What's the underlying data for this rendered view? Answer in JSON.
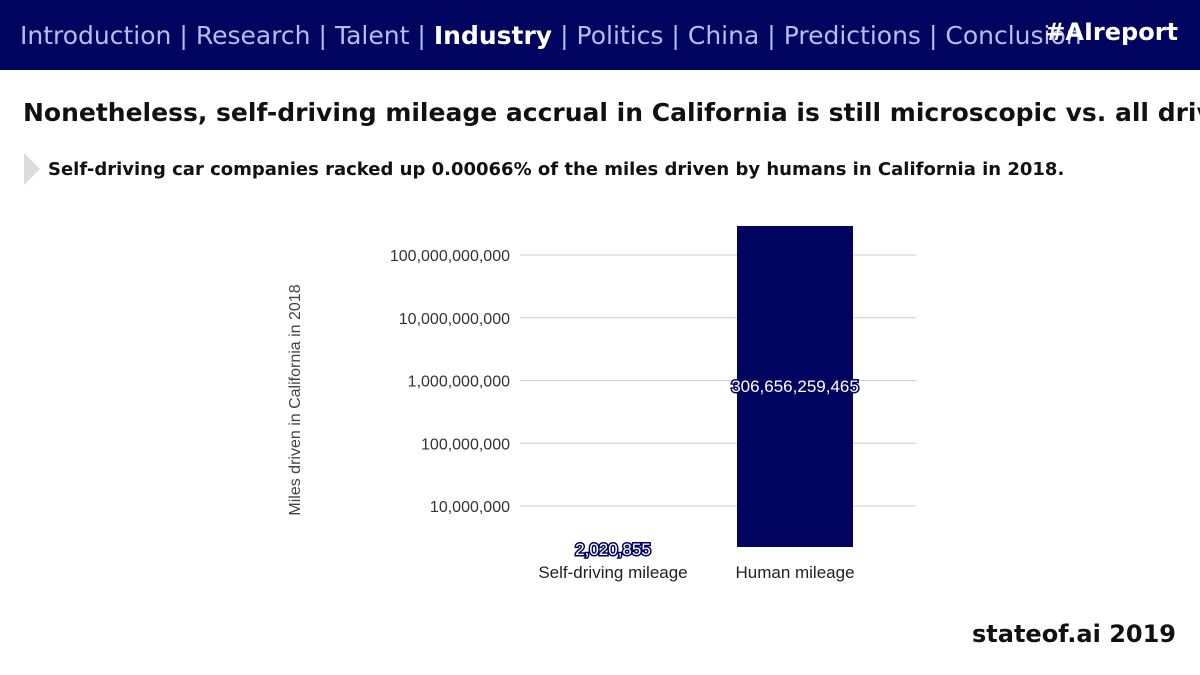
{
  "nav": {
    "items": [
      "Introduction",
      "Research",
      "Talent",
      "Industry",
      "Politics",
      "China",
      "Predictions",
      "Conclusion"
    ],
    "active": "Industry",
    "separator": "|",
    "hashtag": "#AIreport"
  },
  "slide": {
    "title": "Nonetheless, self-driving mileage accrual in California is still microscopic vs. all drivers",
    "subtitle": "Self-driving car companies racked up 0.00066% of the miles driven by humans in California in 2018."
  },
  "chart_data": {
    "type": "bar",
    "scale": "log",
    "categories": [
      "Self-driving mileage",
      "Human mileage"
    ],
    "values": [
      2020855,
      306656259465
    ],
    "data_labels": [
      "2,020,855",
      "306,656,259,465"
    ],
    "ylabel": "Miles driven in California in 2018",
    "yticks": [
      10000000,
      100000000,
      1000000000,
      10000000000,
      100000000000
    ],
    "ytick_labels": [
      "10,000,000",
      "100,000,000",
      "1,000,000,000",
      "10,000,000,000",
      "100,000,000,000"
    ],
    "ylim": [
      2000000,
      300000000000
    ],
    "grid": true,
    "bar_color": "#01045e"
  },
  "footer": {
    "brand": "stateof.ai 2019"
  }
}
